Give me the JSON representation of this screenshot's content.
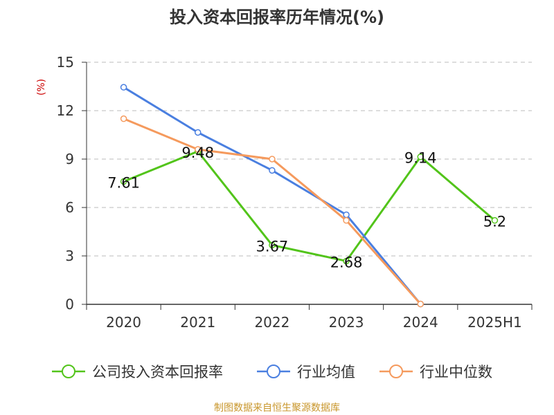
{
  "chart_data": {
    "type": "line",
    "title": "投入资本回报率历年情况(%)",
    "ylabel": "(%)",
    "xlabel": "",
    "categories": [
      "2020",
      "2021",
      "2022",
      "2023",
      "2024",
      "2025H1"
    ],
    "ylim": [
      0,
      15
    ],
    "yticks": [
      0,
      3,
      6,
      9,
      12,
      15
    ],
    "grid": true,
    "legend_position": "bottom",
    "series": [
      {
        "name": "公司投入资本回报率",
        "color": "#52c41a",
        "values": [
          7.61,
          9.48,
          3.67,
          2.68,
          9.14,
          5.2
        ],
        "labels": [
          "7.61",
          "9.48",
          "3.67",
          "2.68",
          "9.14",
          "5.2"
        ]
      },
      {
        "name": "行业均值",
        "color": "#4a7fe0",
        "values": [
          13.45,
          10.65,
          8.3,
          5.55,
          0.02,
          null
        ]
      },
      {
        "name": "行业中位数",
        "color": "#f59a5d",
        "values": [
          11.5,
          9.6,
          9.0,
          5.2,
          0.02,
          null
        ]
      }
    ]
  },
  "source": "制图数据来自恒生聚源数据库"
}
